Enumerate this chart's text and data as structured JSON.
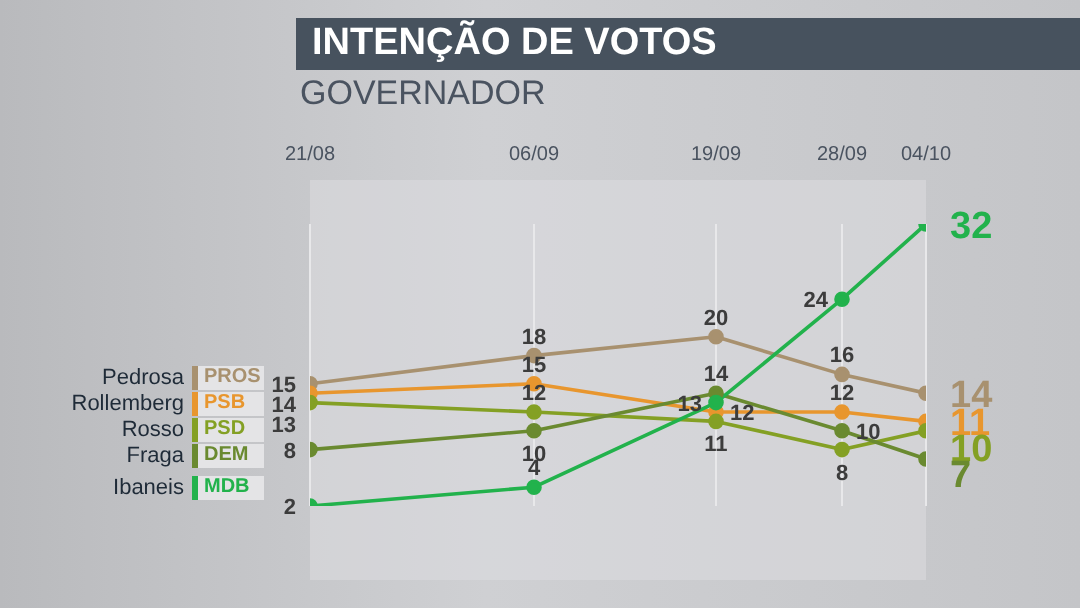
{
  "chart_data": {
    "type": "line",
    "title": "INTENÇÃO DE VOTOS",
    "subtitle": "GOVERNADOR",
    "x": [
      "--08-21",
      "--09-06",
      "--09-19",
      "--09-28",
      "--10-04"
    ],
    "xlim": [
      "--08-21",
      "--10-04"
    ],
    "xticks": [
      {
        "value": "--08-21",
        "label": "21/08"
      },
      {
        "value": "--09-06",
        "label": "06/09"
      },
      {
        "value": "--09-19",
        "label": "19/09"
      },
      {
        "value": "--09-28",
        "label": "28/09"
      },
      {
        "value": "--10-04",
        "label": "04/10"
      }
    ],
    "tick_labels": "x",
    "grid": "x",
    "legend": "left",
    "marker": "circle",
    "line_style": "solid",
    "data_labels": true,
    "annotations": [
      "PROS",
      "PSB",
      "PSD",
      "DEM",
      "MDB"
    ],
    "series": [
      {
        "name": "Pedrosa",
        "color": "#a8916f",
        "values": [
          15,
          18,
          20,
          16,
          14
        ]
      },
      {
        "name": "Rollemberg",
        "color": "#e8962e",
        "values": [
          14,
          15,
          12,
          12,
          11
        ]
      },
      {
        "name": "Rosso",
        "color": "#84a024",
        "values": [
          13,
          12,
          11,
          8,
          10
        ]
      },
      {
        "name": "Fraga",
        "color": "#6a8a30",
        "values": [
          8,
          10,
          14,
          10,
          7
        ]
      },
      {
        "name": "Ibaneis",
        "color": "#22b24c",
        "values": [
          2,
          4,
          13,
          24,
          32
        ]
      }
    ]
  }
}
